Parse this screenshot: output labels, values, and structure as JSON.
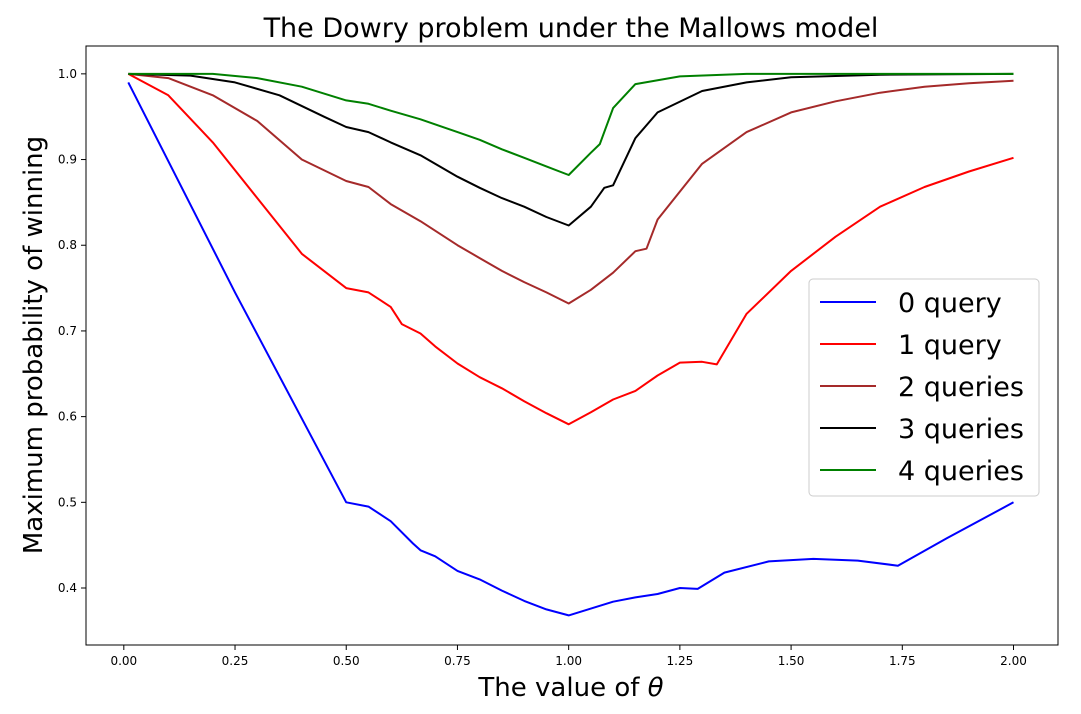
{
  "chart_data": {
    "type": "line",
    "title": "The Dowry problem under the Mallows model",
    "xlabel": "The value of",
    "xlabel_symbol": "θ",
    "ylabel": "Maximum probability of winning",
    "xlim": [
      -0.085,
      2.1
    ],
    "ylim": [
      0.3335,
      1.0325
    ],
    "x_ticks": [
      "0.00",
      "0.25",
      "0.50",
      "0.75",
      "1.00",
      "1.25",
      "1.50",
      "1.75",
      "2.00"
    ],
    "y_ticks": [
      "0.4",
      "0.5",
      "0.6",
      "0.7",
      "0.8",
      "0.9",
      "1.0"
    ],
    "grid": false,
    "legend_position": "center-right",
    "series": [
      {
        "name": "0 query",
        "color": "#0000ff",
        "points": [
          [
            0.01,
            0.99
          ],
          [
            0.25,
            0.745
          ],
          [
            0.5,
            0.5
          ],
          [
            0.55,
            0.495
          ],
          [
            0.6,
            0.478
          ],
          [
            0.65,
            0.452
          ],
          [
            0.667,
            0.444
          ],
          [
            0.7,
            0.437
          ],
          [
            0.75,
            0.42
          ],
          [
            0.8,
            0.41
          ],
          [
            0.85,
            0.397
          ],
          [
            0.9,
            0.385
          ],
          [
            0.95,
            0.375
          ],
          [
            1.0,
            0.368
          ],
          [
            1.05,
            0.376
          ],
          [
            1.1,
            0.384
          ],
          [
            1.15,
            0.389
          ],
          [
            1.2,
            0.393
          ],
          [
            1.25,
            0.4
          ],
          [
            1.29,
            0.399
          ],
          [
            1.35,
            0.418
          ],
          [
            1.45,
            0.431
          ],
          [
            1.55,
            0.434
          ],
          [
            1.65,
            0.432
          ],
          [
            1.74,
            0.426
          ],
          [
            1.85,
            0.458
          ],
          [
            2.0,
            0.5
          ]
        ]
      },
      {
        "name": "1 query",
        "color": "#ff0000",
        "points": [
          [
            0.01,
            1.0
          ],
          [
            0.1,
            0.975
          ],
          [
            0.2,
            0.92
          ],
          [
            0.3,
            0.855
          ],
          [
            0.4,
            0.79
          ],
          [
            0.5,
            0.75
          ],
          [
            0.55,
            0.745
          ],
          [
            0.6,
            0.728
          ],
          [
            0.625,
            0.708
          ],
          [
            0.667,
            0.697
          ],
          [
            0.7,
            0.682
          ],
          [
            0.75,
            0.662
          ],
          [
            0.8,
            0.646
          ],
          [
            0.85,
            0.633
          ],
          [
            0.9,
            0.618
          ],
          [
            0.95,
            0.604
          ],
          [
            1.0,
            0.591
          ],
          [
            1.05,
            0.605
          ],
          [
            1.1,
            0.62
          ],
          [
            1.15,
            0.63
          ],
          [
            1.2,
            0.648
          ],
          [
            1.25,
            0.663
          ],
          [
            1.3,
            0.664
          ],
          [
            1.333,
            0.661
          ],
          [
            1.4,
            0.72
          ],
          [
            1.5,
            0.77
          ],
          [
            1.6,
            0.81
          ],
          [
            1.7,
            0.845
          ],
          [
            1.8,
            0.868
          ],
          [
            1.9,
            0.886
          ],
          [
            2.0,
            0.902
          ]
        ]
      },
      {
        "name": "2 queries",
        "color": "#a52a2a",
        "points": [
          [
            0.01,
            1.0
          ],
          [
            0.1,
            0.995
          ],
          [
            0.2,
            0.975
          ],
          [
            0.3,
            0.945
          ],
          [
            0.4,
            0.9
          ],
          [
            0.5,
            0.875
          ],
          [
            0.55,
            0.868
          ],
          [
            0.6,
            0.848
          ],
          [
            0.667,
            0.828
          ],
          [
            0.75,
            0.8
          ],
          [
            0.8,
            0.785
          ],
          [
            0.85,
            0.77
          ],
          [
            0.9,
            0.757
          ],
          [
            0.95,
            0.745
          ],
          [
            1.0,
            0.732
          ],
          [
            1.05,
            0.748
          ],
          [
            1.1,
            0.768
          ],
          [
            1.15,
            0.793
          ],
          [
            1.175,
            0.796
          ],
          [
            1.2,
            0.83
          ],
          [
            1.3,
            0.895
          ],
          [
            1.4,
            0.932
          ],
          [
            1.5,
            0.955
          ],
          [
            1.6,
            0.968
          ],
          [
            1.7,
            0.978
          ],
          [
            1.8,
            0.985
          ],
          [
            1.9,
            0.989
          ],
          [
            2.0,
            0.992
          ]
        ]
      },
      {
        "name": "3 queries",
        "color": "#000000",
        "points": [
          [
            0.01,
            1.0
          ],
          [
            0.15,
            0.998
          ],
          [
            0.25,
            0.99
          ],
          [
            0.35,
            0.975
          ],
          [
            0.45,
            0.95
          ],
          [
            0.5,
            0.938
          ],
          [
            0.55,
            0.932
          ],
          [
            0.6,
            0.92
          ],
          [
            0.667,
            0.905
          ],
          [
            0.75,
            0.88
          ],
          [
            0.8,
            0.867
          ],
          [
            0.85,
            0.855
          ],
          [
            0.9,
            0.845
          ],
          [
            0.95,
            0.833
          ],
          [
            1.0,
            0.823
          ],
          [
            1.05,
            0.845
          ],
          [
            1.08,
            0.867
          ],
          [
            1.1,
            0.87
          ],
          [
            1.15,
            0.925
          ],
          [
            1.2,
            0.955
          ],
          [
            1.3,
            0.98
          ],
          [
            1.4,
            0.99
          ],
          [
            1.5,
            0.996
          ],
          [
            1.7,
            0.999
          ],
          [
            2.0,
            1.0
          ]
        ]
      },
      {
        "name": "4 queries",
        "color": "#008000",
        "points": [
          [
            0.01,
            1.0
          ],
          [
            0.2,
            1.0
          ],
          [
            0.3,
            0.995
          ],
          [
            0.4,
            0.985
          ],
          [
            0.5,
            0.969
          ],
          [
            0.55,
            0.965
          ],
          [
            0.6,
            0.957
          ],
          [
            0.667,
            0.947
          ],
          [
            0.75,
            0.932
          ],
          [
            0.8,
            0.923
          ],
          [
            0.85,
            0.912
          ],
          [
            0.9,
            0.902
          ],
          [
            0.95,
            0.892
          ],
          [
            1.0,
            0.882
          ],
          [
            1.05,
            0.908
          ],
          [
            1.07,
            0.918
          ],
          [
            1.1,
            0.96
          ],
          [
            1.15,
            0.988
          ],
          [
            1.25,
            0.997
          ],
          [
            1.4,
            1.0
          ],
          [
            2.0,
            1.0
          ]
        ]
      }
    ]
  }
}
